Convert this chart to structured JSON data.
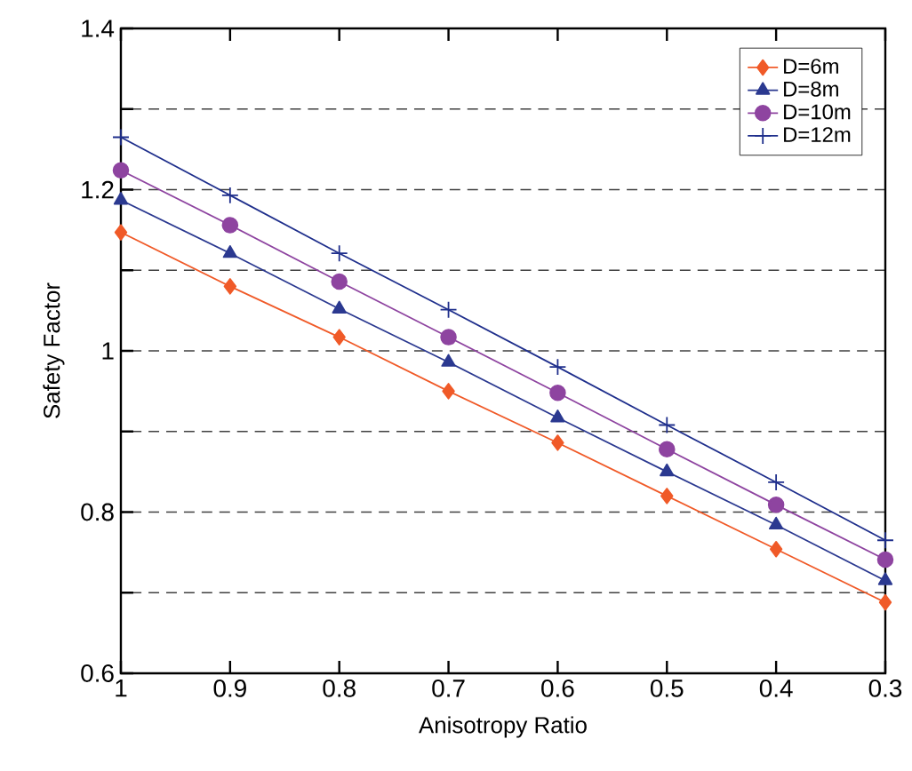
{
  "chart_data": {
    "type": "line",
    "xlabel": "Anisotropy Ratio",
    "ylabel": "Safety Factor",
    "x": [
      1,
      0.9,
      0.8,
      0.7,
      0.6,
      0.5,
      0.4,
      0.3
    ],
    "xlim": [
      1,
      0.3
    ],
    "xticks": [
      1,
      0.9,
      0.8,
      0.7,
      0.6,
      0.5,
      0.4,
      0.3
    ],
    "ylim": [
      0.6,
      1.4
    ],
    "yticks": [
      0.6,
      {
        "value": 0.7,
        "label": null
      },
      0.8,
      {
        "value": 0.9,
        "label": null
      },
      1,
      {
        "value": 1.1,
        "label": null
      },
      1.2,
      {
        "value": 1.3,
        "label": null
      },
      1.4
    ],
    "grid": "y",
    "legend": "top right",
    "line_style": "solid",
    "series": [
      {
        "name": "D=6m",
        "color": "#f05a28",
        "marker": "diamond",
        "values": [
          1.147,
          1.08,
          1.017,
          0.95,
          0.886,
          0.82,
          0.754,
          0.688
        ]
      },
      {
        "name": "D=8m",
        "color": "#2b3990",
        "marker": "triangle",
        "values": [
          1.187,
          1.121,
          1.052,
          0.986,
          0.917,
          0.85,
          0.784,
          0.715
        ]
      },
      {
        "name": "D=10m",
        "color": "#8e44a0",
        "marker": "circle",
        "values": [
          1.224,
          1.156,
          1.086,
          1.017,
          0.948,
          0.878,
          0.809,
          0.741
        ]
      },
      {
        "name": "D=12m",
        "color": "#1f2f8c",
        "marker": "cross",
        "values": [
          1.265,
          1.193,
          1.121,
          1.051,
          0.98,
          0.908,
          0.837,
          0.765
        ]
      }
    ]
  }
}
